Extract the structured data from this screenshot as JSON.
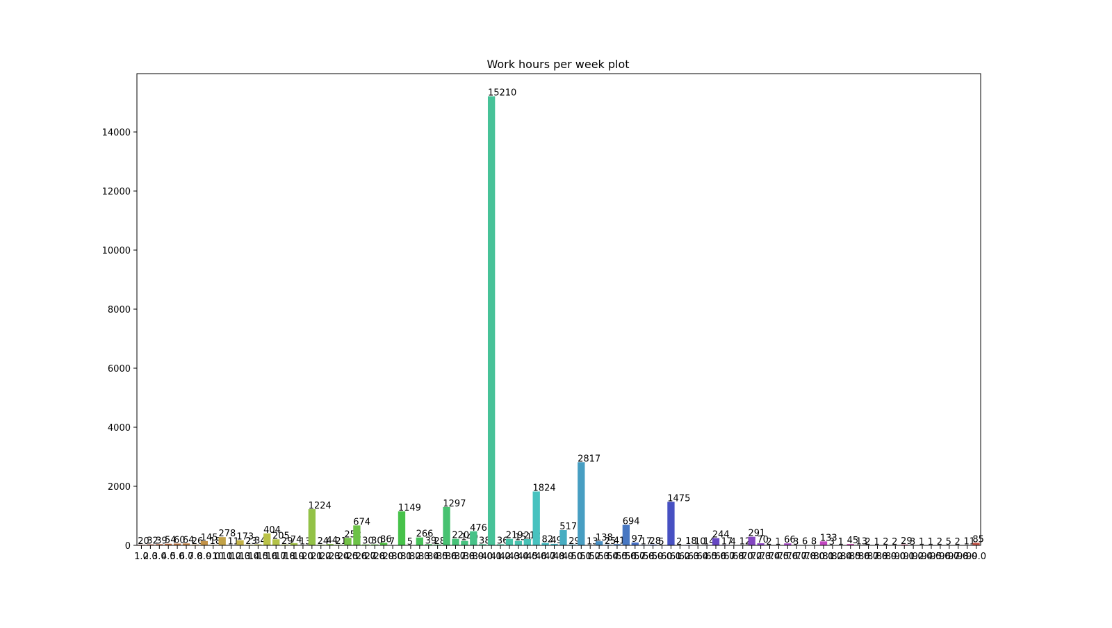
{
  "chart_data": {
    "type": "bar",
    "title": "Work hours per week plot",
    "palette": "husl",
    "categories": [
      "1.0",
      "2.0",
      "3.0",
      "4.0",
      "5.0",
      "6.0",
      "7.0",
      "8.0",
      "9.0",
      "10.0",
      "11.0",
      "12.0",
      "13.0",
      "14.0",
      "15.0",
      "16.0",
      "17.0",
      "18.0",
      "19.0",
      "20.0",
      "21.0",
      "22.0",
      "23.0",
      "24.0",
      "25.0",
      "26.0",
      "27.0",
      "28.0",
      "29.0",
      "30.0",
      "31.0",
      "32.0",
      "33.0",
      "34.0",
      "35.0",
      "36.0",
      "37.0",
      "38.0",
      "39.0",
      "40.0",
      "41.0",
      "42.0",
      "43.0",
      "44.0",
      "45.0",
      "46.0",
      "47.0",
      "48.0",
      "49.0",
      "50.0",
      "51.0",
      "52.0",
      "53.0",
      "54.0",
      "55.0",
      "56.0",
      "57.0",
      "58.0",
      "59.0",
      "60.0",
      "61.0",
      "62.0",
      "63.0",
      "64.0",
      "65.0",
      "66.0",
      "67.0",
      "68.0",
      "70.0",
      "72.0",
      "73.0",
      "74.0",
      "75.0",
      "76.0",
      "77.0",
      "78.0",
      "80.0",
      "81.0",
      "82.0",
      "84.0",
      "85.0",
      "86.0",
      "87.0",
      "88.0",
      "89.0",
      "90.0",
      "91.0",
      "92.0",
      "94.0",
      "95.0",
      "96.0",
      "97.0",
      "98.0",
      "99.0"
    ],
    "values": [
      20,
      32,
      39,
      54,
      60,
      64,
      26,
      145,
      18,
      278,
      11,
      173,
      23,
      34,
      404,
      205,
      29,
      74,
      13,
      1224,
      24,
      44,
      21,
      252,
      674,
      30,
      30,
      86,
      7,
      1149,
      5,
      266,
      39,
      28,
      1297,
      220,
      149,
      476,
      38,
      15210,
      36,
      219,
      151,
      212,
      1824,
      82,
      49,
      517,
      29,
      2817,
      13,
      138,
      25,
      41,
      694,
      97,
      17,
      28,
      5,
      1475,
      2,
      18,
      10,
      14,
      244,
      17,
      4,
      12,
      291,
      70,
      2,
      1,
      66,
      3,
      6,
      8,
      133,
      3,
      1,
      45,
      13,
      2,
      1,
      2,
      2,
      29,
      3,
      1,
      1,
      2,
      5,
      2,
      11,
      85
    ],
    "ylim": [
      0,
      15976
    ],
    "yticks": [
      0,
      2000,
      4000,
      6000,
      8000,
      10000,
      12000,
      14000
    ]
  }
}
